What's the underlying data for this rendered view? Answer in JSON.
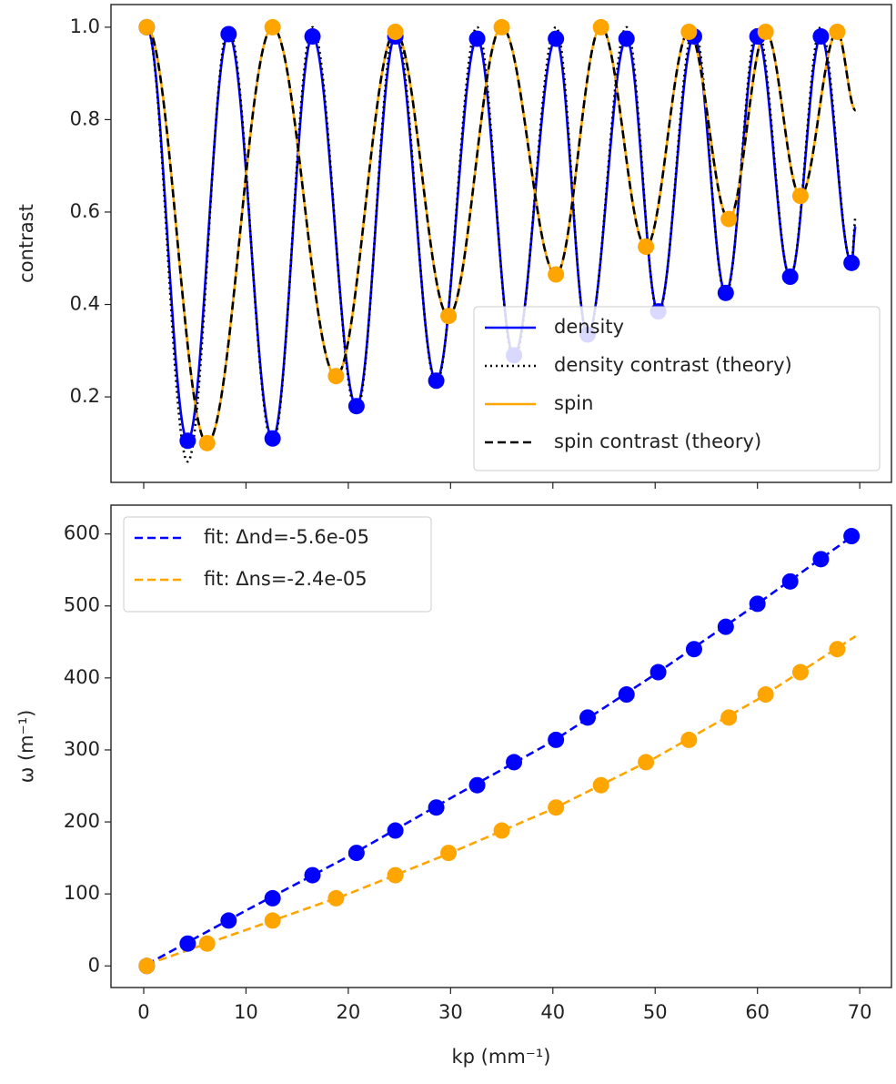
{
  "chart_data": [
    {
      "type": "line",
      "ylabel": "contrast",
      "xlim": [
        -3.2,
        73.1
      ],
      "ylim": [
        0.015,
        1.049
      ],
      "xticks": [
        0,
        10,
        20,
        30,
        40,
        50,
        60,
        70
      ],
      "xticklabels": false,
      "yticks": [
        0.2,
        0.4,
        0.6,
        0.8,
        {
          "value": 1,
          "label": "1.0"
        }
      ],
      "legend": "lower right",
      "series": [
        {
          "name": "density",
          "type": "line",
          "style": "solid",
          "color": "#0000ff",
          "x": [
            0.3,
            4.3,
            8.3,
            12.6,
            16.5,
            20.8,
            24.6,
            28.6,
            32.6,
            36.2,
            40.3,
            43.4,
            47.2,
            50.3,
            53.8,
            56.9,
            60.0,
            63.2,
            66.2,
            69.2,
            69.6
          ],
          "values": [
            1.0,
            0.105,
            0.985,
            0.11,
            0.98,
            0.18,
            0.98,
            0.235,
            0.975,
            0.29,
            0.975,
            0.335,
            0.975,
            0.385,
            0.98,
            0.425,
            0.98,
            0.46,
            0.98,
            0.49,
            0.57
          ]
        },
        {
          "name": "density contrast (theory)",
          "type": "line",
          "style": "dotted",
          "color": "#000000",
          "x": [
            0.3,
            4.3,
            8.3,
            12.6,
            16.5,
            20.8,
            24.6,
            28.6,
            32.6,
            36.2,
            40.3,
            43.4,
            47.2,
            50.3,
            53.8,
            56.9,
            60.0,
            63.2,
            66.2,
            69.2,
            69.6
          ],
          "values": [
            1.0,
            0.06,
            1.0,
            0.1,
            1.0,
            0.17,
            1.0,
            0.23,
            1.0,
            0.28,
            1.0,
            0.33,
            1.0,
            0.38,
            1.0,
            0.42,
            1.0,
            0.46,
            1.0,
            0.49,
            0.59
          ]
        },
        {
          "name": "spin",
          "type": "line",
          "style": "solid",
          "color": "#ffa500",
          "x": [
            0.3,
            6.2,
            12.6,
            18.8,
            24.6,
            29.8,
            35.0,
            40.3,
            44.7,
            49.1,
            53.3,
            57.2,
            60.8,
            64.2,
            67.8,
            69.6
          ],
          "values": [
            1.0,
            0.1,
            1.0,
            0.245,
            0.99,
            0.375,
            1.0,
            0.465,
            1.0,
            0.525,
            0.99,
            0.585,
            0.99,
            0.635,
            0.99,
            0.82
          ]
        },
        {
          "name": "spin contrast (theory)",
          "type": "line",
          "style": "dashed",
          "color": "#000000",
          "x": [
            0.3,
            6.2,
            12.6,
            18.8,
            24.6,
            29.8,
            35.0,
            40.3,
            44.7,
            49.1,
            53.3,
            57.2,
            60.8,
            64.2,
            67.8,
            69.6
          ],
          "values": [
            1.0,
            0.1,
            1.0,
            0.245,
            0.99,
            0.375,
            1.0,
            0.465,
            1.0,
            0.525,
            0.99,
            0.585,
            0.99,
            0.635,
            0.99,
            0.82
          ]
        },
        {
          "type": "scatter",
          "color": "#0000ff",
          "x": [
            0.3,
            4.3,
            8.3,
            12.6,
            16.5,
            20.8,
            24.6,
            28.6,
            32.6,
            36.2,
            40.3,
            43.4,
            47.2,
            50.3,
            53.8,
            56.9,
            60.0,
            63.2,
            66.2,
            69.2
          ],
          "values": [
            1.0,
            0.105,
            0.985,
            0.11,
            0.98,
            0.18,
            0.98,
            0.235,
            0.975,
            0.29,
            0.975,
            0.335,
            0.975,
            0.385,
            0.98,
            0.425,
            0.98,
            0.46,
            0.98,
            0.49
          ]
        },
        {
          "type": "scatter",
          "color": "#ffa500",
          "x": [
            0.3,
            6.2,
            12.6,
            18.8,
            24.6,
            29.8,
            35.0,
            40.3,
            44.7,
            49.1,
            53.3,
            57.2,
            60.8,
            64.2,
            67.8
          ],
          "values": [
            1.0,
            0.1,
            1.0,
            0.245,
            0.99,
            0.375,
            1.0,
            0.465,
            1.0,
            0.525,
            0.99,
            0.585,
            0.99,
            0.635,
            0.99
          ]
        }
      ]
    },
    {
      "type": "line",
      "ylabel": "ω (m⁻¹)",
      "xlabel": "kp (mm⁻¹)",
      "xlim": [
        -3.2,
        73.1
      ],
      "ylim": [
        -30,
        640
      ],
      "xticks": [
        0,
        10,
        20,
        30,
        40,
        50,
        60,
        70
      ],
      "xticklabels": true,
      "yticks": [
        0,
        100,
        200,
        300,
        400,
        500,
        600
      ],
      "legend": "upper left",
      "series": [
        {
          "type": "scatter",
          "color": "#0000ff",
          "x": [
            0.3,
            4.3,
            8.3,
            12.6,
            16.5,
            20.8,
            24.6,
            28.6,
            32.6,
            36.2,
            40.3,
            43.4,
            47.2,
            50.3,
            53.8,
            56.9,
            60.0,
            63.2,
            66.2,
            69.2
          ],
          "values": [
            0,
            31,
            63,
            94,
            126,
            157,
            188,
            220,
            251,
            283,
            314,
            345,
            377,
            408,
            440,
            471,
            503,
            534,
            565,
            597
          ]
        },
        {
          "type": "scatter",
          "color": "#ffa500",
          "x": [
            0.3,
            6.2,
            12.6,
            18.8,
            24.6,
            29.8,
            35.0,
            40.3,
            44.7,
            49.1,
            53.3,
            57.2,
            60.8,
            64.2,
            67.8
          ],
          "values": [
            0,
            31,
            63,
            94,
            126,
            157,
            188,
            220,
            251,
            283,
            314,
            345,
            377,
            408,
            440
          ]
        },
        {
          "name": "fit: Δnd=-5.6e-05",
          "type": "line",
          "style": "dashed",
          "color": "#0000ff",
          "smooth": false,
          "x": [
            0.3,
            10,
            20,
            30,
            40,
            50,
            60,
            69.6
          ],
          "values": [
            2,
            77,
            152,
            233,
            312,
            405,
            503,
            600
          ]
        },
        {
          "name": "fit: Δns=-2.4e-05",
          "type": "line",
          "style": "dashed",
          "color": "#ffa500",
          "smooth": false,
          "x": [
            0.3,
            10,
            20,
            30,
            40,
            50,
            60,
            69.6
          ],
          "values": [
            2,
            50,
            100,
            157,
            218,
            289,
            370,
            458
          ]
        }
      ]
    }
  ]
}
